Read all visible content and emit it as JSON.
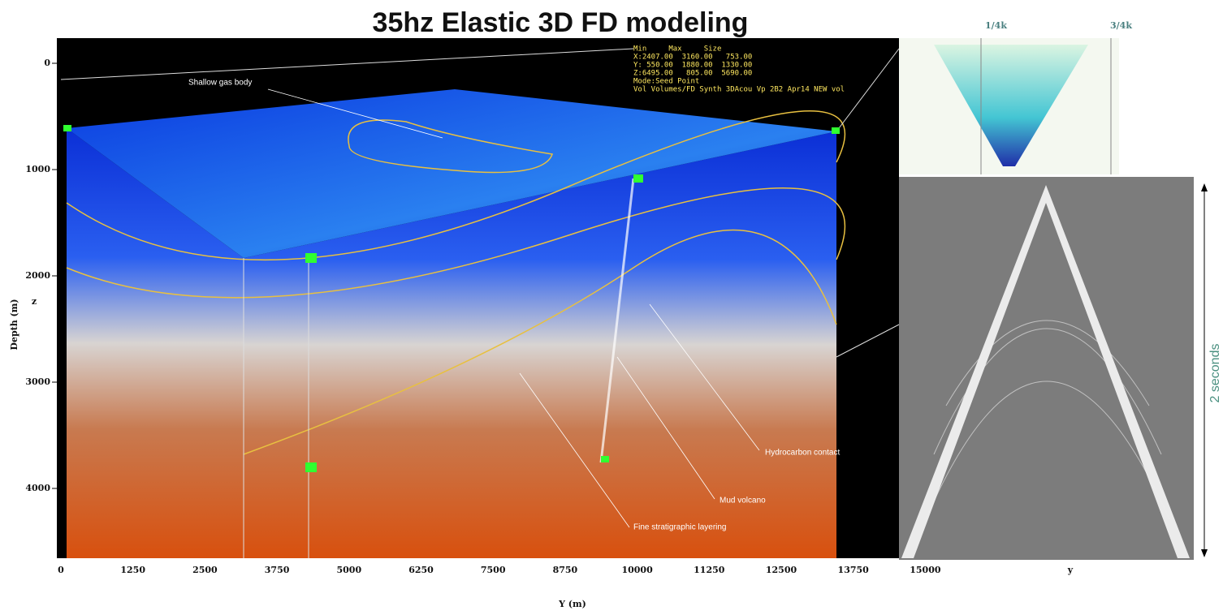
{
  "title": "35hz Elastic 3D FD modeling",
  "left_panel": {
    "y_axis": {
      "label": "Depth (m)",
      "ticks": [
        "0",
        "1000",
        "2000",
        "3000",
        "4000"
      ]
    },
    "z_label": "z",
    "x_axis": {
      "label": "Y (m)",
      "ticks": [
        "0",
        "1250",
        "2500",
        "3750",
        "5000",
        "6250",
        "7500",
        "8750",
        "10000",
        "11250",
        "12500",
        "13750",
        "15000"
      ]
    },
    "info_box": [
      "Min     Max     Size",
      "X:2407.00  3160.00   753.00",
      "Y: 550.00  1880.00  1330.00",
      "Z:6495.00   805.00  5690.00",
      "Mode:Seed Point",
      "Vol Volumes/FD Synth 3DAcou Vp 2B2 Apr14 NEW vol"
    ],
    "annotations": [
      "Shallow gas body",
      "Hydrocarbon contact",
      "Mud volcano",
      "Fine stratigraphic layering"
    ]
  },
  "right_top": {
    "labels": [
      "1/4k",
      "3/4k"
    ]
  },
  "right_bottom": {
    "x_label": "y",
    "duration_label": "2 seconds"
  }
}
